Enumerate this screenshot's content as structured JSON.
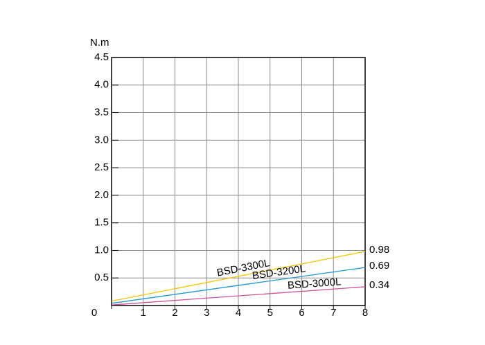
{
  "chart_data": {
    "type": "line",
    "y_label": "N.m",
    "x": [
      0,
      8
    ],
    "series": [
      {
        "name": "BSD-3300L",
        "color": "#f5c400",
        "values": [
          0.08,
          0.98
        ]
      },
      {
        "name": "BSD-3200L",
        "color": "#1e96d2",
        "values": [
          0.04,
          0.69
        ]
      },
      {
        "name": "BSD-3000L",
        "color": "#d0509a",
        "values": [
          0.01,
          0.34
        ]
      }
    ],
    "xlim": [
      0,
      8
    ],
    "xticks": [
      0,
      1,
      2,
      3,
      4,
      5,
      6,
      7,
      8
    ],
    "ylim": [
      0,
      4.5
    ],
    "yticks": [
      0.5,
      {
        "value": 1,
        "label": "1.0"
      },
      1.5,
      {
        "value": 2,
        "label": "2.0"
      },
      2.5,
      {
        "value": 3,
        "label": "3.0"
      },
      3.5,
      {
        "value": 4,
        "label": "4.0"
      },
      4.5
    ],
    "grid": true
  }
}
